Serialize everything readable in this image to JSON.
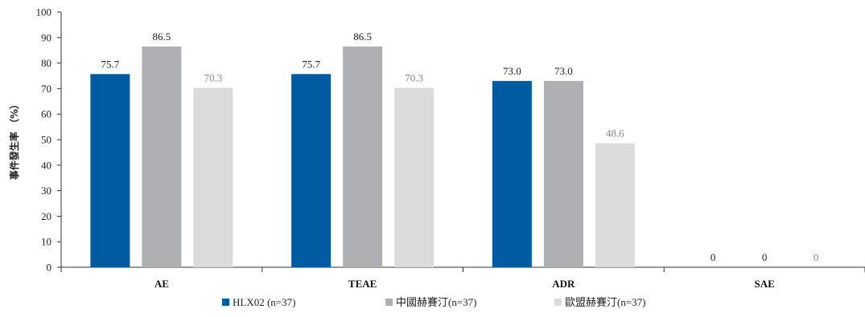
{
  "chart_data": {
    "type": "bar",
    "title": "",
    "xlabel": "",
    "ylabel": "事件發生率 （%）",
    "ylim": [
      0,
      100
    ],
    "yticks": [
      0,
      10,
      20,
      30,
      40,
      50,
      60,
      70,
      80,
      90,
      100
    ],
    "categories": [
      "AE",
      "TEAE",
      "ADR",
      "SAE"
    ],
    "series": [
      {
        "name": "HLX02 (n=37)",
        "color": "#005BA1",
        "label_color": "#222222",
        "values": [
          75.7,
          75.7,
          73.0,
          0
        ],
        "labels": [
          "75.7",
          "75.7",
          "73.0",
          "0"
        ]
      },
      {
        "name": "中國赫賽汀(n=37)",
        "color": "#AFB0B3",
        "label_color": "#222222",
        "values": [
          86.5,
          86.5,
          73.0,
          0
        ],
        "labels": [
          "86.5",
          "86.5",
          "73.0",
          "0"
        ]
      },
      {
        "name": "歐盟赫賽汀(n=37)",
        "color": "#DADBDD",
        "label_color": "#888888",
        "values": [
          70.3,
          70.3,
          48.6,
          0
        ],
        "labels": [
          "70.3",
          "70.3",
          "48.6",
          "0"
        ]
      }
    ],
    "grid": false,
    "legend_position": "bottom"
  }
}
